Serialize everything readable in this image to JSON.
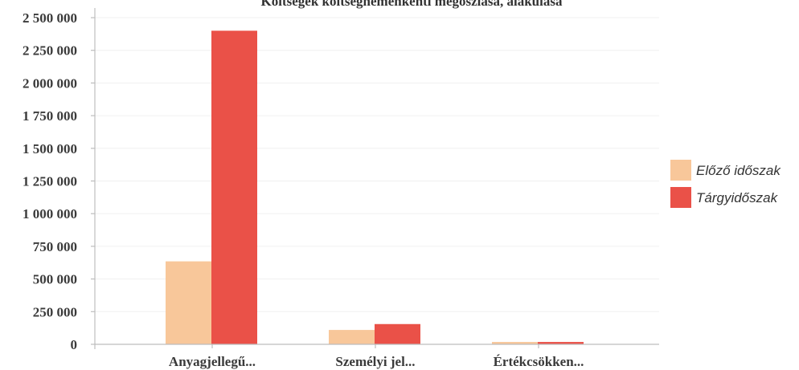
{
  "chart_data": {
    "type": "bar",
    "title": "Költségek költségnemenkénti megoszlása, alakulása",
    "categories": [
      "Anyagjellegű...",
      "Személyi jel...",
      "Értékcsökken..."
    ],
    "series": [
      {
        "name": "Előző időszak",
        "color": "#f8c79a",
        "values": [
          635000,
          110000,
          18000
        ]
      },
      {
        "name": "Tárgyidőszak",
        "color": "#ea5148",
        "values": [
          2400000,
          155000,
          18000
        ]
      }
    ],
    "ylim": [
      0,
      2500000
    ],
    "yticks": [
      0,
      250000,
      500000,
      750000,
      1000000,
      1250000,
      1500000,
      1750000,
      2000000,
      2250000,
      2500000
    ],
    "ytick_labels": [
      "0",
      "250 000",
      "500 000",
      "750 000",
      "1 000 000",
      "1 250 000",
      "1 500 000",
      "1 750 000",
      "2 000 000",
      "2 250 000",
      "2 500 000"
    ],
    "xlabel": "",
    "ylabel": "",
    "grid": true,
    "legend": "right"
  }
}
